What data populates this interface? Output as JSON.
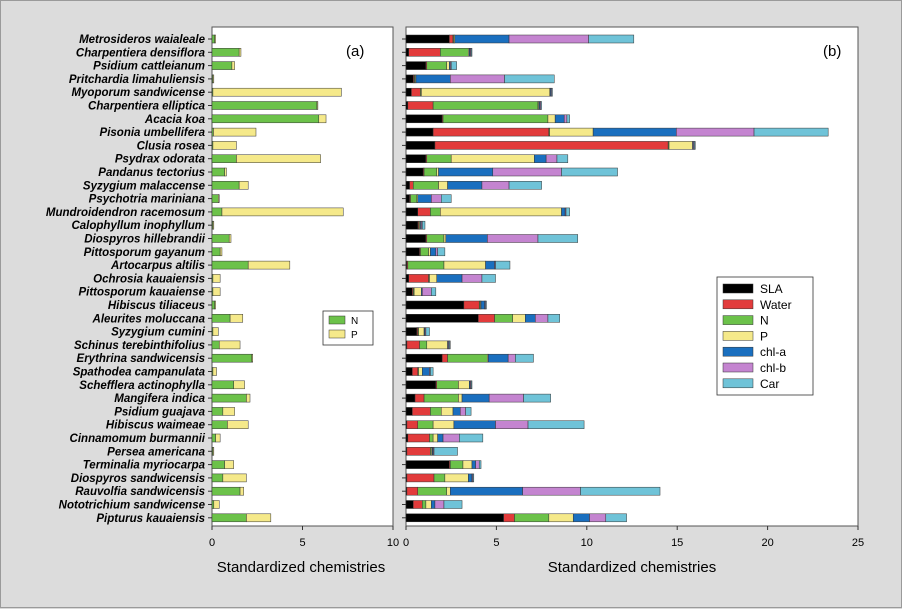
{
  "chart_data": [
    {
      "panel_label": "(a)",
      "type": "bar",
      "orientation": "horizontal",
      "stacked": true,
      "xlabel": "Standardized chemistries",
      "xlim": [
        0,
        10
      ],
      "xticks": [
        0,
        5,
        10
      ],
      "categories": [
        "Metrosideros waialeale",
        "Charpentiera densiflora",
        "Psidium cattleianum",
        "Pritchardia limahuliensis",
        "Myoporum sandwicense",
        "Charpentiera elliptica",
        "Acacia koa",
        "Pisonia umbellifera",
        "Clusia rosea",
        "Psydrax odorata",
        "Pandanus tectorius",
        "Syzygium malaccense",
        "Psychotria mariniana",
        "Mundroidendron racemosum",
        "Calophyllum inophyllum",
        "Diospyros hillebrandii",
        "Pittosporum gayanum",
        "Artocarpus altilis",
        "Ochrosia kauaiensis",
        "Pittosporum kauaiense",
        "Hibiscus tiliaceus",
        "Aleurites moluccana",
        "Syzygium cumini",
        "Schinus terebinthifolius",
        "Erythrina sandwicensis",
        "Spathodea campanulata",
        "Schefflera actinophylla",
        "Mangifera indica",
        "Psidium guajava",
        "Hibiscus waimeae",
        "Cinnamomum burmannii",
        "Persea americana",
        "Terminalia myriocarpa",
        "Diospyros sandwicensis",
        "Rauvolfia sandwicensis",
        "Nototrichium sandwicense",
        "Pipturus kauaiensis"
      ],
      "series": [
        {
          "name": "N",
          "color": "#6cc24a",
          "values": [
            0.15,
            1.5,
            1.1,
            0.05,
            0.05,
            5.8,
            5.9,
            0.08,
            0.05,
            1.35,
            0.7,
            1.5,
            0.35,
            0.55,
            0.05,
            0.95,
            0.45,
            2.0,
            0.05,
            0.05,
            0.15,
            1.0,
            0.05,
            0.4,
            2.2,
            0.05,
            1.2,
            1.9,
            0.6,
            0.85,
            0.2,
            0.05,
            0.7,
            0.6,
            1.55,
            0.1,
            1.9
          ]
        },
        {
          "name": "P",
          "color": "#f5e98a",
          "values": [
            0.05,
            0.1,
            0.15,
            0.05,
            7.1,
            0.05,
            0.4,
            2.35,
            1.3,
            4.65,
            0.1,
            0.5,
            0.05,
            6.7,
            0.05,
            0.1,
            0.1,
            2.3,
            0.4,
            0.4,
            0.05,
            0.7,
            0.3,
            1.15,
            0.05,
            0.2,
            0.6,
            0.2,
            0.65,
            1.15,
            0.25,
            0.05,
            0.5,
            1.3,
            0.2,
            0.3,
            1.35
          ]
        }
      ],
      "legend": {
        "placement": "right-middle",
        "entries": [
          "N",
          "P"
        ]
      }
    },
    {
      "panel_label": "(b)",
      "type": "bar",
      "orientation": "horizontal",
      "stacked": true,
      "xlabel": "Standardized chemistries",
      "xlim": [
        0,
        25
      ],
      "xticks": [
        0,
        5,
        10,
        15,
        20,
        25
      ],
      "categories": [
        "Metrosideros waialeale",
        "Charpentiera densiflora",
        "Psidium cattleianum",
        "Pritchardia limahuliensis",
        "Myoporum sandwicense",
        "Charpentiera elliptica",
        "Acacia koa",
        "Pisonia umbellifera",
        "Clusia rosea",
        "Psydrax odorata",
        "Pandanus tectorius",
        "Syzygium malaccense",
        "Psychotria mariniana",
        "Mundroidendron racemosum",
        "Calophyllum inophyllum",
        "Diospyros hillebrandii",
        "Pittosporum gayanum",
        "Artocarpus altilis",
        "Ochrosia kauaiensis",
        "Pittosporum kauaiense",
        "Hibiscus tiliaceus",
        "Aleurites moluccana",
        "Syzygium cumini",
        "Schinus terebinthifolius",
        "Erythrina sandwicensis",
        "Spathodea campanulata",
        "Schefflera actinophylla",
        "Mangifera indica",
        "Psidium guajava",
        "Hibiscus waimeae",
        "Cinnamomum burmannii",
        "Persea americana",
        "Terminalia myriocarpa",
        "Diospyros sandwicensis",
        "Rauvolfia sandwicensis",
        "Nototrichium sandwicense",
        "Pipturus kauaiensis"
      ],
      "series": [
        {
          "name": "SLA",
          "color": "#000000",
          "values": [
            2.4,
            0.15,
            1.1,
            0.4,
            0.3,
            0.1,
            2.0,
            1.5,
            1.6,
            1.1,
            0.95,
            0.2,
            0.2,
            0.65,
            0.65,
            1.1,
            0.75,
            0.05,
            0.15,
            0.35,
            3.2,
            4.0,
            0.6,
            0.05,
            2.0,
            0.35,
            1.65,
            0.5,
            0.35,
            0.05,
            0.1,
            0.05,
            2.4,
            0.05,
            0.05,
            0.4,
            5.4
          ]
        },
        {
          "name": "Water",
          "color": "#e23b3b",
          "values": [
            0.2,
            1.75,
            0.05,
            0.05,
            0.5,
            1.4,
            0.05,
            6.4,
            12.9,
            0.05,
            0.05,
            0.2,
            0.05,
            0.7,
            0.05,
            0.05,
            0.05,
            0.05,
            1.1,
            0.05,
            0.85,
            0.9,
            0.05,
            0.7,
            0.3,
            0.3,
            0.05,
            0.5,
            1.0,
            0.6,
            1.2,
            1.3,
            0.05,
            1.5,
            0.6,
            0.5,
            0.6
          ]
        },
        {
          "name": "N",
          "color": "#6cc24a",
          "values": [
            0.05,
            1.55,
            1.1,
            0.05,
            0.05,
            5.8,
            5.8,
            0.05,
            0.05,
            1.35,
            0.7,
            1.4,
            0.35,
            0.55,
            0.05,
            0.95,
            0.45,
            2.0,
            0.05,
            0.05,
            0.05,
            1.0,
            0.05,
            0.4,
            2.2,
            0.05,
            1.2,
            1.9,
            0.6,
            0.85,
            0.2,
            0.05,
            0.7,
            0.6,
            1.6,
            0.2,
            1.9
          ]
        },
        {
          "name": "P",
          "color": "#f5e98a",
          "values": [
            0.05,
            0.05,
            0.15,
            0.05,
            7.1,
            0.05,
            0.4,
            2.4,
            1.3,
            4.6,
            0.1,
            0.5,
            0.05,
            6.7,
            0.05,
            0.1,
            0.1,
            2.3,
            0.4,
            0.4,
            0.05,
            0.7,
            0.3,
            1.15,
            0.05,
            0.2,
            0.6,
            0.2,
            0.65,
            1.15,
            0.25,
            0.05,
            0.5,
            1.3,
            0.2,
            0.3,
            1.35
          ]
        },
        {
          "name": "chl-a",
          "color": "#1a6fbf",
          "values": [
            3.0,
            0.05,
            0.05,
            1.9,
            0.05,
            0.05,
            0.5,
            4.6,
            0.05,
            0.65,
            3.0,
            1.9,
            0.75,
            0.2,
            0.05,
            2.3,
            0.3,
            0.5,
            1.4,
            0.05,
            0.2,
            0.55,
            0.05,
            0.05,
            1.1,
            0.4,
            0.05,
            1.5,
            0.4,
            2.3,
            0.3,
            0.05,
            0.2,
            0.2,
            4.0,
            0.2,
            0.9
          ]
        },
        {
          "name": "chl-b",
          "color": "#c484d0",
          "values": [
            4.4,
            0.05,
            0.05,
            3.0,
            0.05,
            0.05,
            0.15,
            4.3,
            0.05,
            0.6,
            3.8,
            1.5,
            0.55,
            0.05,
            0.05,
            2.8,
            0.1,
            0.05,
            1.1,
            0.5,
            0.05,
            0.7,
            0.05,
            0.05,
            0.4,
            0.05,
            0.05,
            1.9,
            0.3,
            1.8,
            0.9,
            0.05,
            0.2,
            0.05,
            3.2,
            0.5,
            0.9
          ]
        },
        {
          "name": "Car",
          "color": "#6fc3d8",
          "values": [
            2.5,
            0.05,
            0.3,
            2.75,
            0.05,
            0.05,
            0.15,
            4.1,
            0.05,
            0.6,
            3.1,
            1.8,
            0.55,
            0.2,
            0.15,
            2.2,
            0.4,
            0.8,
            0.75,
            0.25,
            0.05,
            0.65,
            0.2,
            0.05,
            1.0,
            0.15,
            0.05,
            1.5,
            0.3,
            3.1,
            1.3,
            1.3,
            0.1,
            0.05,
            4.4,
            1.0,
            1.15
          ]
        }
      ],
      "legend": {
        "placement": "right-middle",
        "entries": [
          "SLA",
          "Water",
          "N",
          "P",
          "chl-a",
          "chl-b",
          "Car"
        ]
      }
    }
  ]
}
